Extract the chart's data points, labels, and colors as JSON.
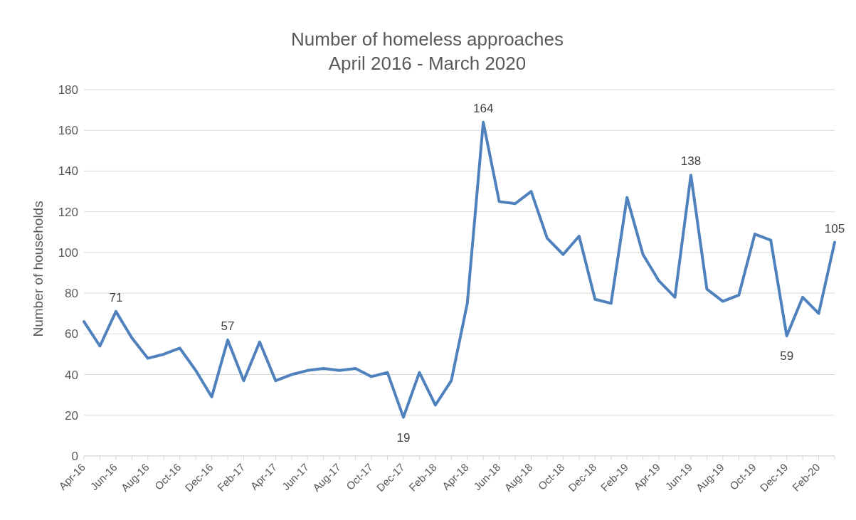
{
  "chart_data": {
    "type": "line",
    "title": "Number of homeless approaches",
    "subtitle": "April 2016 - March 2020",
    "ylabel": "Number of households",
    "categories": [
      "Apr-16",
      null,
      "Jun-16",
      null,
      "Aug-16",
      null,
      "Oct-16",
      null,
      "Dec-16",
      null,
      "Feb-17",
      null,
      "Apr-17",
      null,
      "Jun-17",
      null,
      "Aug-17",
      null,
      "Oct-17",
      null,
      "Dec-17",
      null,
      "Feb-18",
      null,
      "Apr-18",
      null,
      "Jun-18",
      null,
      "Aug-18",
      null,
      "Oct-18",
      null,
      "Dec-18",
      null,
      "Feb-19",
      null,
      "Apr-19",
      null,
      "Jun-19",
      null,
      "Aug-19",
      null,
      "Oct-19",
      null,
      "Dec-19",
      null,
      "Feb-20",
      null
    ],
    "series": [
      {
        "color": "#4f81bd",
        "values": [
          66,
          54,
          71,
          58,
          48,
          50,
          53,
          42,
          29,
          57,
          37,
          56,
          37,
          40,
          42,
          43,
          42,
          43,
          39,
          41,
          19,
          41,
          25,
          37,
          75,
          164,
          125,
          124,
          130,
          107,
          99,
          108,
          77,
          75,
          127,
          99,
          86,
          78,
          138,
          82,
          76,
          79,
          109,
          106,
          59,
          78,
          70,
          105
        ],
        "value_labels": [
          null,
          null,
          "71",
          null,
          null,
          null,
          null,
          null,
          null,
          "57",
          null,
          null,
          null,
          null,
          null,
          null,
          null,
          null,
          null,
          null,
          "19",
          null,
          null,
          null,
          null,
          "164",
          null,
          null,
          null,
          null,
          null,
          null,
          null,
          null,
          null,
          null,
          null,
          null,
          "138",
          null,
          null,
          null,
          null,
          null,
          "59",
          null,
          null,
          "105"
        ]
      }
    ],
    "ylim": [
      0,
      180
    ],
    "yticks": [
      0,
      20,
      40,
      60,
      80,
      100,
      120,
      140,
      160,
      180
    ],
    "grid": "y",
    "legend": false,
    "marker": "none",
    "line_style": "solid"
  }
}
